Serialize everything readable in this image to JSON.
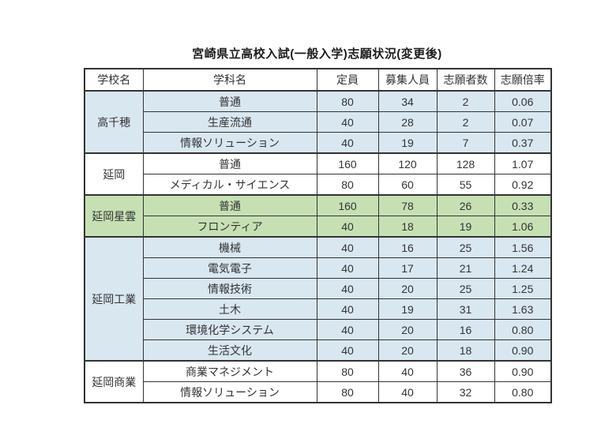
{
  "title": "宮崎県立高校入試(一般入学)志願状況(変更後)",
  "colors": {
    "blue_row": "#d9e7f1",
    "green_row": "#c6e0b4",
    "white_row": "#ffffff",
    "border": "#333333",
    "text": "#333333"
  },
  "table": {
    "headers": [
      "学校名",
      "学科名",
      "定員",
      "募集人員",
      "志願者数",
      "志願倍率"
    ],
    "column_keys": [
      "dept",
      "capacity",
      "recruit",
      "applicants",
      "ratio"
    ],
    "groups": [
      {
        "school": "高千穂",
        "bg": "#d9e7f1",
        "rows": [
          {
            "dept": "普通",
            "capacity": "80",
            "recruit": "34",
            "applicants": "2",
            "ratio": "0.06"
          },
          {
            "dept": "生産流通",
            "capacity": "40",
            "recruit": "28",
            "applicants": "2",
            "ratio": "0.07"
          },
          {
            "dept": "情報ソリューション",
            "capacity": "40",
            "recruit": "19",
            "applicants": "7",
            "ratio": "0.37"
          }
        ]
      },
      {
        "school": "延岡",
        "bg": "#ffffff",
        "rows": [
          {
            "dept": "普通",
            "capacity": "160",
            "recruit": "120",
            "applicants": "128",
            "ratio": "1.07"
          },
          {
            "dept": "メディカル・サイエンス",
            "capacity": "80",
            "recruit": "60",
            "applicants": "55",
            "ratio": "0.92"
          }
        ]
      },
      {
        "school": "延岡星雲",
        "bg": "#c6e0b4",
        "rows": [
          {
            "dept": "普通",
            "capacity": "160",
            "recruit": "78",
            "applicants": "26",
            "ratio": "0.33"
          },
          {
            "dept": "フロンティア",
            "capacity": "40",
            "recruit": "18",
            "applicants": "19",
            "ratio": "1.06"
          }
        ]
      },
      {
        "school": "延岡工業",
        "bg": "#d9e7f1",
        "rows": [
          {
            "dept": "機械",
            "capacity": "40",
            "recruit": "16",
            "applicants": "25",
            "ratio": "1.56"
          },
          {
            "dept": "電気電子",
            "capacity": "40",
            "recruit": "17",
            "applicants": "21",
            "ratio": "1.24"
          },
          {
            "dept": "情報技術",
            "capacity": "40",
            "recruit": "20",
            "applicants": "25",
            "ratio": "1.25"
          },
          {
            "dept": "土木",
            "capacity": "40",
            "recruit": "19",
            "applicants": "31",
            "ratio": "1.63"
          },
          {
            "dept": "環境化学システム",
            "capacity": "40",
            "recruit": "20",
            "applicants": "16",
            "ratio": "0.80"
          },
          {
            "dept": "生活文化",
            "capacity": "40",
            "recruit": "20",
            "applicants": "18",
            "ratio": "0.90"
          }
        ]
      },
      {
        "school": "延岡商業",
        "bg": "#ffffff",
        "rows": [
          {
            "dept": "商業マネジメント",
            "capacity": "80",
            "recruit": "40",
            "applicants": "36",
            "ratio": "0.90"
          },
          {
            "dept": "情報ソリューション",
            "capacity": "80",
            "recruit": "40",
            "applicants": "32",
            "ratio": "0.80"
          }
        ]
      }
    ]
  }
}
